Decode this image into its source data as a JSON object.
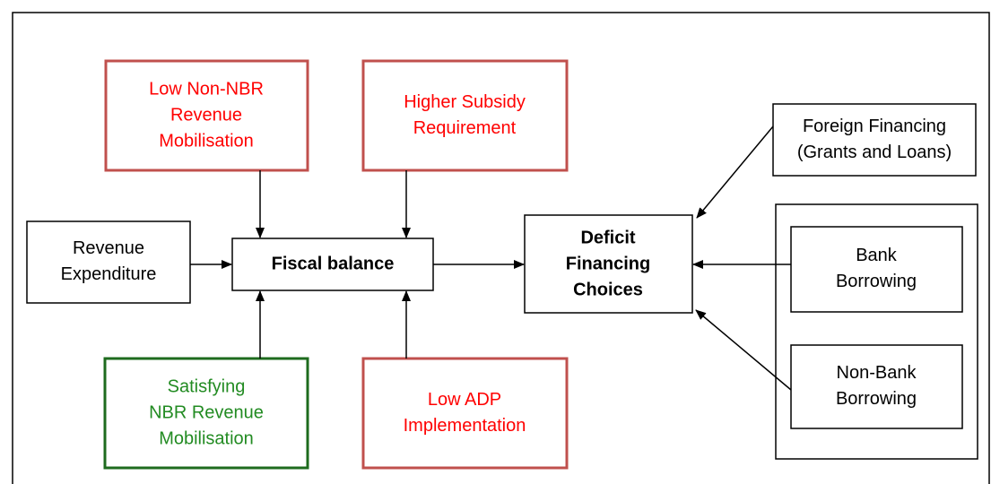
{
  "nodes": [
    {
      "id": "low-non-nbr",
      "lines": [
        "Low Non-NBR",
        "Revenue",
        "Mobilisation"
      ]
    },
    {
      "id": "higher-subsidy",
      "lines": [
        "Higher Subsidy",
        "Requirement"
      ]
    },
    {
      "id": "foreign-financing",
      "lines": [
        "Foreign Financing",
        "(Grants and Loans)"
      ]
    },
    {
      "id": "revenue-expenditure",
      "lines": [
        "Revenue",
        "Expenditure"
      ]
    },
    {
      "id": "fiscal-balance",
      "lines": [
        "Fiscal balance"
      ]
    },
    {
      "id": "deficit-financing",
      "lines": [
        "Deficit",
        "Financing",
        "Choices"
      ]
    },
    {
      "id": "bank-borrowing",
      "lines": [
        "Bank",
        "Borrowing"
      ]
    },
    {
      "id": "non-bank-borrowing",
      "lines": [
        "Non-Bank",
        "Borrowing"
      ]
    },
    {
      "id": "satisfying-nbr",
      "lines": [
        "Satisfying",
        "NBR Revenue",
        "Mobilisation"
      ]
    },
    {
      "id": "low-adp",
      "lines": [
        "Low ADP",
        "Implementation"
      ]
    }
  ]
}
